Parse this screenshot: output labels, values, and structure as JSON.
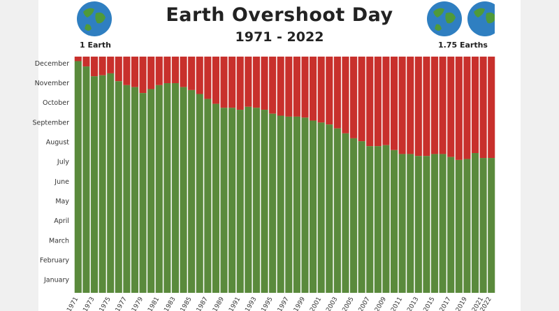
{
  "header": {
    "title": "Earth Overshoot Day",
    "subtitle": "1971 - 2022"
  },
  "globes": {
    "left_label": "1 Earth",
    "right_label": "1.75 Earths",
    "ocean_color": "#2f7fc1",
    "land_color": "#4f9a3a"
  },
  "chart_data": {
    "type": "bar",
    "title": "Earth Overshoot Day",
    "subtitle": "1971 - 2022",
    "stacked": true,
    "y_unit": "month of year (0 = start of January, 12 = end of December)",
    "ylim": [
      0,
      12
    ],
    "y_ticks": [
      "January",
      "February",
      "March",
      "April",
      "May",
      "June",
      "July",
      "August",
      "September",
      "October",
      "November",
      "December"
    ],
    "categories": [
      "1971",
      "1972",
      "1973",
      "1974",
      "1975",
      "1976",
      "1977",
      "1978",
      "1979",
      "1980",
      "1981",
      "1982",
      "1983",
      "1984",
      "1985",
      "1986",
      "1987",
      "1988",
      "1989",
      "1990",
      "1991",
      "1992",
      "1993",
      "1994",
      "1995",
      "1996",
      "1997",
      "1998",
      "1999",
      "2000",
      "2001",
      "2002",
      "2003",
      "2004",
      "2005",
      "2006",
      "2007",
      "2008",
      "2009",
      "2010",
      "2011",
      "2012",
      "2013",
      "2014",
      "2015",
      "2016",
      "2017",
      "2018",
      "2019",
      "2020",
      "2021",
      "2022"
    ],
    "x_tick_labels": [
      "1971",
      "1973",
      "1975",
      "1977",
      "1979",
      "1981",
      "1983",
      "1985",
      "1987",
      "1989",
      "1991",
      "1993",
      "1995",
      "1997",
      "1999",
      "2001",
      "2003",
      "2005",
      "2007",
      "2009",
      "2011",
      "2013",
      "2015",
      "2017",
      "2019",
      "2021",
      "2022"
    ],
    "series": [
      {
        "color": "#5a8a3c",
        "values": [
          11.77,
          11.5,
          11.0,
          11.05,
          11.15,
          10.75,
          10.55,
          10.45,
          10.15,
          10.35,
          10.55,
          10.65,
          10.65,
          10.45,
          10.3,
          10.1,
          9.85,
          9.6,
          9.4,
          9.4,
          9.3,
          9.45,
          9.4,
          9.3,
          9.1,
          9.0,
          8.95,
          8.95,
          8.9,
          8.75,
          8.65,
          8.55,
          8.35,
          8.1,
          7.85,
          7.7,
          7.45,
          7.45,
          7.5,
          7.25,
          7.05,
          7.05,
          6.95,
          6.95,
          7.05,
          7.05,
          6.9,
          6.75,
          6.8,
          7.1,
          6.85,
          6.85
        ]
      },
      {
        "color": "#c8302c",
        "values": [
          0.23,
          0.5,
          1.0,
          0.95,
          0.85,
          1.25,
          1.45,
          1.55,
          1.85,
          1.65,
          1.45,
          1.35,
          1.35,
          1.55,
          1.7,
          1.9,
          2.15,
          2.4,
          2.6,
          2.6,
          2.7,
          2.55,
          2.6,
          2.7,
          2.9,
          3.0,
          3.05,
          3.05,
          3.1,
          3.25,
          3.35,
          3.45,
          3.65,
          3.9,
          4.15,
          4.3,
          4.55,
          4.55,
          4.5,
          4.75,
          4.95,
          4.95,
          5.05,
          5.05,
          4.95,
          4.95,
          5.1,
          5.25,
          5.2,
          4.9,
          5.15,
          5.15
        ]
      }
    ]
  }
}
